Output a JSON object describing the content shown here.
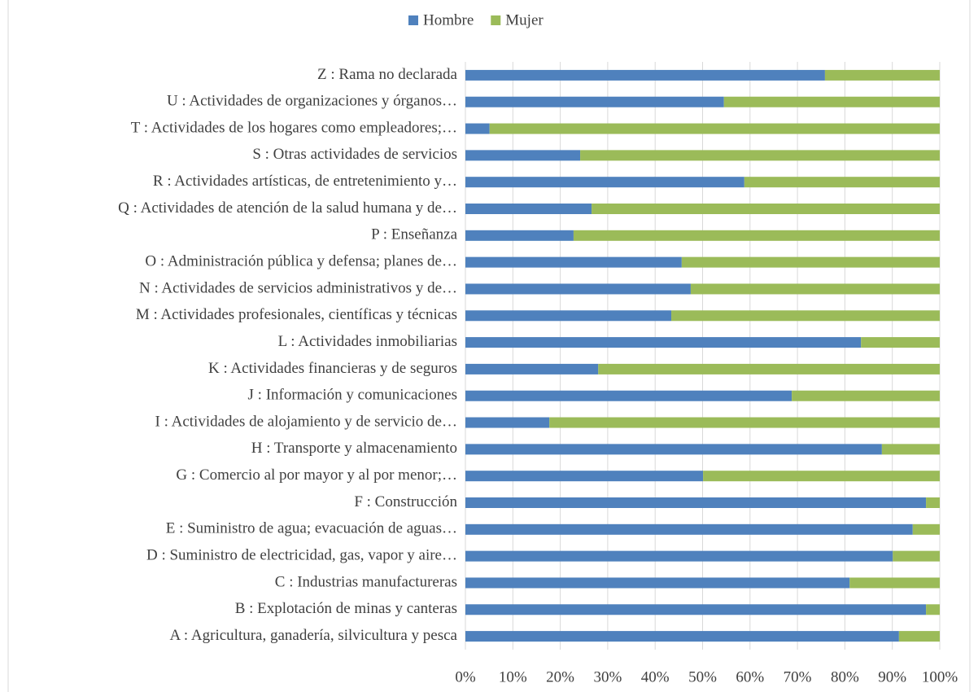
{
  "chart_data": {
    "type": "stacked_barh",
    "categories": [
      "Z : Rama no declarada",
      "U : Actividades de organizaciones y órganos…",
      "T : Actividades de los hogares como empleadores;…",
      "S : Otras actividades de servicios",
      "R : Actividades artísticas, de entretenimiento y…",
      "Q : Actividades de atención de la salud humana y de…",
      "P : Enseñanza",
      "O : Administración pública y defensa; planes de…",
      "N : Actividades de servicios administrativos y de…",
      "M : Actividades profesionales, científicas y técnicas",
      "L : Actividades inmobiliarias",
      "K : Actividades financieras y de seguros",
      "J : Información y comunicaciones",
      "I : Actividades de alojamiento y de servicio de…",
      "H : Transporte y almacenamiento",
      "G : Comercio al por mayor y al por menor;…",
      "F : Construcción",
      "E : Suministro de agua; evacuación de aguas…",
      "D : Suministro de electricidad, gas, vapor y aire…",
      "C : Industrias manufactureras",
      "B : Explotación de minas y canteras",
      "A : Agricultura, ganadería, silvicultura y pesca"
    ],
    "series": [
      {
        "name": "Hombre",
        "color": "#4f81bd",
        "values": [
          75.8,
          54.5,
          5.1,
          24.2,
          58.8,
          26.6,
          22.8,
          45.6,
          47.5,
          43.4,
          83.4,
          28.0,
          68.8,
          17.7,
          87.8,
          50.1,
          97.1,
          94.3,
          90.1,
          81.0,
          97.1,
          91.4
        ]
      },
      {
        "name": "Mujer",
        "color": "#9bbb59",
        "values": [
          24.2,
          45.5,
          94.9,
          75.8,
          41.2,
          73.4,
          77.2,
          54.4,
          52.5,
          56.6,
          16.6,
          72.0,
          31.2,
          82.3,
          12.2,
          49.9,
          2.9,
          5.7,
          9.9,
          19.0,
          2.9,
          8.6
        ]
      }
    ],
    "xlim": [
      0,
      100
    ],
    "xticks": [
      {
        "value": 0,
        "label": "0%"
      },
      {
        "value": 10,
        "label": "10%"
      },
      {
        "value": 20,
        "label": "20%"
      },
      {
        "value": 30,
        "label": "30%"
      },
      {
        "value": 40,
        "label": "40%"
      },
      {
        "value": 50,
        "label": "50%"
      },
      {
        "value": 60,
        "label": "60%"
      },
      {
        "value": 70,
        "label": "70%"
      },
      {
        "value": 80,
        "label": "80%"
      },
      {
        "value": 90,
        "label": "90%"
      },
      {
        "value": 100,
        "label": "100%"
      }
    ],
    "grid": true,
    "legend": "top"
  }
}
